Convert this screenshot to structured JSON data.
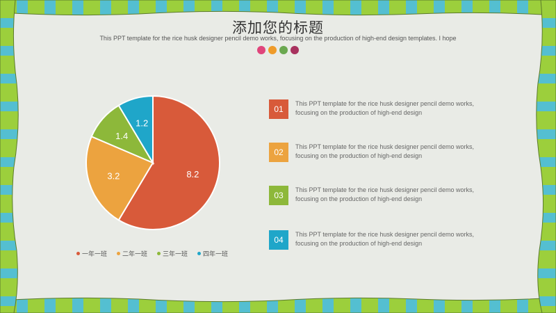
{
  "title": "添加您的标题",
  "subtitle": "This PPT template for the rice husk designer pencil demo works, focusing on the production of high-end design templates. I hope",
  "colors": {
    "red": "#d85a3a",
    "orange": "#eca33f",
    "green": "#8db83a",
    "blue": "#1fa6c9",
    "pink": "#e0457b",
    "dot_orange": "#ef9b29",
    "dot_green": "#6aa84f",
    "dot_maroon": "#a8325e"
  },
  "dots": [
    "#e0457b",
    "#ef9b29",
    "#6aa84f",
    "#a8325e"
  ],
  "chart_data": {
    "type": "pie",
    "categories": [
      "一年一班",
      "二年一班",
      "三年一班",
      "四年一班"
    ],
    "values": [
      8.2,
      3.2,
      1.4,
      1.2
    ],
    "colors": [
      "#d85a3a",
      "#eca33f",
      "#8db83a",
      "#1fa6c9"
    ],
    "labels": [
      "8.2",
      "3.2",
      "1.4",
      "1.2"
    ],
    "legend_position": "bottom"
  },
  "items": [
    {
      "num": "01",
      "text": "This PPT template for the rice husk designer pencil demo works, focusing on the production of high-end design",
      "color": "#d85a3a"
    },
    {
      "num": "02",
      "text": "This PPT template for the rice husk designer pencil demo works, focusing on the production of high-end design",
      "color": "#eca33f"
    },
    {
      "num": "03",
      "text": "This PPT template for the rice husk designer pencil demo works, focusing on the production of high-end design",
      "color": "#8db83a"
    },
    {
      "num": "04",
      "text": "This PPT template for the rice husk designer pencil demo works, focusing on the production of high-end design",
      "color": "#1fa6c9"
    }
  ]
}
